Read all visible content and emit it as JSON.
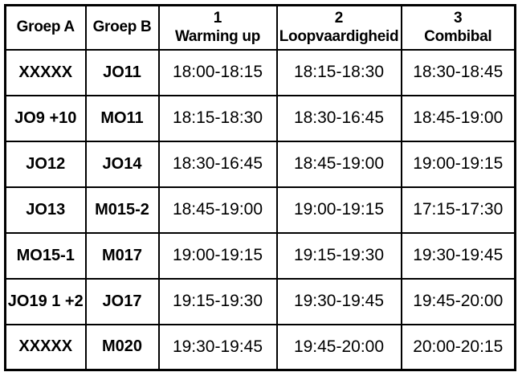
{
  "page": {
    "background_color": "#ffffff",
    "text_color": "#000000"
  },
  "table": {
    "border_color": "#000000",
    "shaded_cell_color": "#e7e6e6",
    "columns": [
      {
        "num": "",
        "label": "Groep A"
      },
      {
        "num": "",
        "label": "Groep B"
      },
      {
        "num": "1",
        "label": "Warming up"
      },
      {
        "num": "2",
        "label": "Loopvaardigheid"
      },
      {
        "num": "3",
        "label": "Combibal"
      }
    ],
    "rows": [
      {
        "cells": [
          "XXXXX",
          "JO11",
          "18:00-18:15",
          "18:15-18:30",
          "18:30-18:45"
        ],
        "shaded_first": false
      },
      {
        "cells": [
          "JO9 +10",
          "MO11",
          "18:15-18:30",
          "18:30-16:45",
          "18:45-19:00"
        ],
        "shaded_first": false
      },
      {
        "cells": [
          "JO12",
          "JO14",
          "18:30-16:45",
          "18:45-19:00",
          "19:00-19:15"
        ],
        "shaded_first": false
      },
      {
        "cells": [
          "JO13",
          "M015-2",
          "18:45-19:00",
          "19:00-19:15",
          "17:15-17:30"
        ],
        "shaded_first": false
      },
      {
        "cells": [
          "MO15-1",
          "M017",
          "19:00-19:15",
          "19:15-19:30",
          "19:30-19:45"
        ],
        "shaded_first": false
      },
      {
        "cells": [
          "JO19 1 +2",
          "JO17",
          "19:15-19:30",
          "19:30-19:45",
          "19:45-20:00"
        ],
        "shaded_first": false
      },
      {
        "cells": [
          "XXXXX",
          "M020",
          "19:30-19:45",
          "19:45-20:00",
          "20:00-20:15"
        ],
        "shaded_first": true
      }
    ]
  }
}
